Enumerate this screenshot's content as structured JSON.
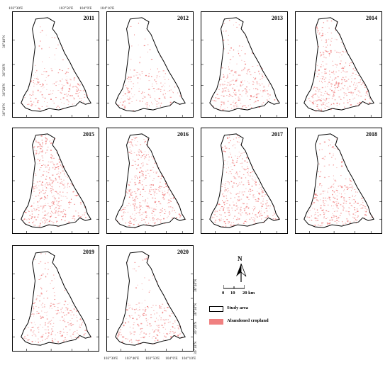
{
  "top_coords": [
    "103°30'E",
    "103°50'E",
    "104°0'E",
    "104°10'E"
  ],
  "bottom_coords": [
    "103°30'E",
    "103°40'E",
    "103°50'E",
    "104°0'E",
    "104°10'E"
  ],
  "left_coords": [
    "36°40'N",
    "36°30'N",
    "36°20'N",
    "36°10'N"
  ],
  "right_coords": [
    "36°40'N",
    "36°30'N",
    "36°20'N",
    "36°10'N"
  ],
  "panels": [
    {
      "year": "2011",
      "density": 0.3
    },
    {
      "year": "2012",
      "density": 0.2
    },
    {
      "year": "2013",
      "density": 0.55
    },
    {
      "year": "2014",
      "density": 0.75
    },
    {
      "year": "2015",
      "density": 1.0
    },
    {
      "year": "2016",
      "density": 0.95
    },
    {
      "year": "2017",
      "density": 0.85
    },
    {
      "year": "2018",
      "density": 0.65
    },
    {
      "year": "2019",
      "density": 0.45
    },
    {
      "year": "2020",
      "density": 0.35
    }
  ],
  "legend": {
    "north_label": "N",
    "scale_0": "0",
    "scale_10": "10",
    "scale_20": "20 km",
    "study_area_label": "Study area",
    "abandoned_label": "Abandoned cropland",
    "abandoned_color": "#f08080",
    "study_area_color": "#ffffff"
  }
}
